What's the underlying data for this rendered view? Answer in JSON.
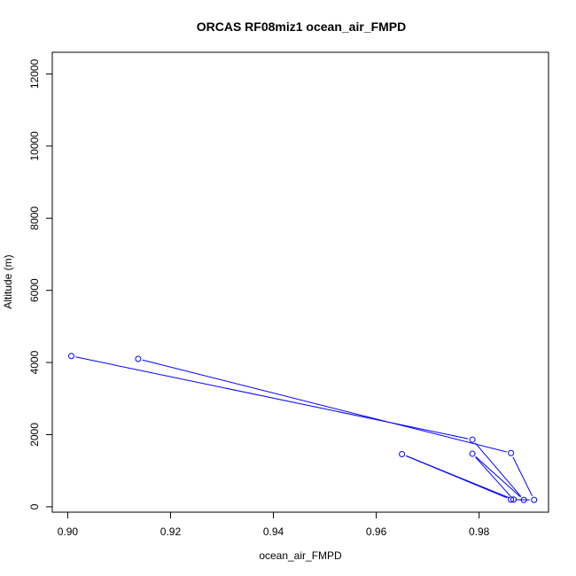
{
  "chart_data": {
    "type": "line",
    "title": "ORCAS RF08miz1 ocean_air_FMPD",
    "xlabel": "ocean_air_FMPD",
    "ylabel": "Altitude (m)",
    "xlim": [
      0.897,
      0.9935
    ],
    "ylim": [
      -150,
      12600
    ],
    "xticks": [
      0.9,
      0.92,
      0.94,
      0.96,
      0.98
    ],
    "xtick_labels": [
      "0.90",
      "0.92",
      "0.94",
      "0.96",
      "0.98"
    ],
    "yticks": [
      0,
      2000,
      4000,
      6000,
      8000,
      10000,
      12000
    ],
    "ytick_labels": [
      "0",
      "2000",
      "4000",
      "6000",
      "8000",
      "10000",
      "12000"
    ],
    "series_color": "#0000ff",
    "series": [
      {
        "points": [
          {
            "x": 0.9007,
            "y": 4180
          },
          {
            "x": 0.9787,
            "y": 1860
          },
          {
            "x": 0.9887,
            "y": 190
          },
          {
            "x": 0.9787,
            "y": 1470
          },
          {
            "x": 0.9867,
            "y": 200
          },
          {
            "x": 0.965,
            "y": 1460
          },
          {
            "x": 0.9862,
            "y": 200
          },
          {
            "x": 0.9907,
            "y": 190
          },
          {
            "x": 0.9862,
            "y": 1490
          },
          {
            "x": 0.9137,
            "y": 4100
          }
        ]
      }
    ]
  }
}
